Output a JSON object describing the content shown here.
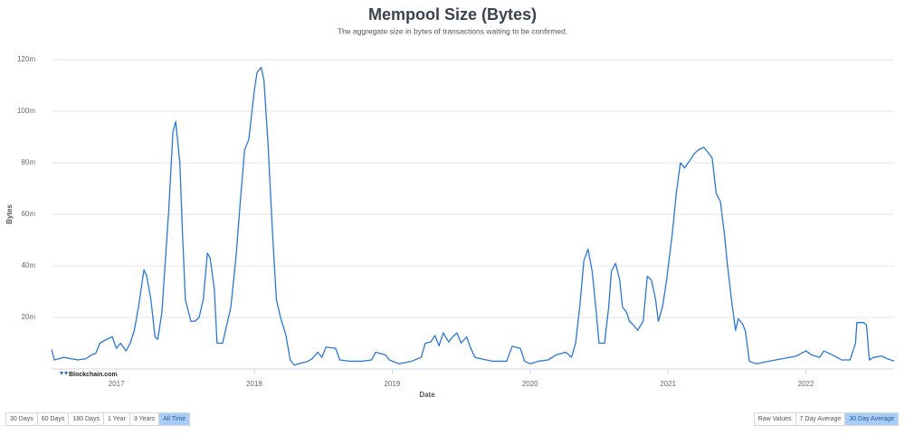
{
  "chart_data": {
    "type": "line",
    "title": "Mempool Size (Bytes)",
    "subtitle": "The aggregate size in bytes of transactions waiting to be confirmed.",
    "x_label": "Date",
    "y_label": "Bytes",
    "watermark": "Blockchain.com",
    "xlim": [
      2016.53,
      2022.64
    ],
    "xticks": [
      2017,
      2018,
      2019,
      2020,
      2021,
      2022
    ],
    "ylim": [
      0,
      120000000
    ],
    "yticks": [
      {
        "value": 20000000,
        "label": "20m"
      },
      {
        "value": 40000000,
        "label": "40m"
      },
      {
        "value": 60000000,
        "label": "60m"
      },
      {
        "value": 80000000,
        "label": "80m"
      },
      {
        "value": 100000000,
        "label": "100m"
      },
      {
        "value": 120000000,
        "label": "120m"
      }
    ],
    "grid": true,
    "series": [
      {
        "color": "#2a78d6",
        "x": [
          2016.53,
          2016.55,
          2016.62,
          2016.72,
          2016.78,
          2016.82,
          2016.85,
          2016.88,
          2016.93,
          2016.97,
          2017.0,
          2017.03,
          2017.07,
          2017.1,
          2017.13,
          2017.16,
          2017.2,
          2017.22,
          2017.25,
          2017.28,
          2017.3,
          2017.33,
          2017.35,
          2017.38,
          2017.41,
          2017.43,
          2017.46,
          2017.48,
          2017.5,
          2017.54,
          2017.57,
          2017.6,
          2017.63,
          2017.66,
          2017.68,
          2017.71,
          2017.73,
          2017.77,
          2017.8,
          2017.83,
          2017.87,
          2017.9,
          2017.93,
          2017.96,
          2018.0,
          2018.02,
          2018.05,
          2018.07,
          2018.1,
          2018.13,
          2018.16,
          2018.19,
          2018.23,
          2018.26,
          2018.29,
          2018.32,
          2018.39,
          2018.42,
          2018.46,
          2018.49,
          2018.52,
          2018.59,
          2018.62,
          2018.69,
          2018.78,
          2018.85,
          2018.88,
          2018.95,
          2018.98,
          2019.05,
          2019.14,
          2019.21,
          2019.24,
          2019.28,
          2019.31,
          2019.34,
          2019.37,
          2019.41,
          2019.44,
          2019.47,
          2019.5,
          2019.54,
          2019.57,
          2019.6,
          2019.64,
          2019.73,
          2019.83,
          2019.87,
          2019.93,
          2019.96,
          2020.0,
          2020.06,
          2020.13,
          2020.19,
          2020.26,
          2020.3,
          2020.33,
          2020.36,
          2020.39,
          2020.42,
          2020.45,
          2020.48,
          2020.5,
          2020.54,
          2020.57,
          2020.59,
          2020.62,
          2020.65,
          2020.67,
          2020.7,
          2020.72,
          2020.75,
          2020.78,
          2020.82,
          2020.85,
          2020.88,
          2020.91,
          2020.93,
          2020.96,
          2020.99,
          2021.03,
          2021.06,
          2021.09,
          2021.12,
          2021.16,
          2021.19,
          2021.22,
          2021.26,
          2021.29,
          2021.32,
          2021.35,
          2021.38,
          2021.41,
          2021.43,
          2021.46,
          2021.49,
          2021.51,
          2021.54,
          2021.56,
          2021.59,
          2021.64,
          2021.73,
          2021.83,
          2021.93,
          2022.0,
          2022.04,
          2022.1,
          2022.13,
          2022.19,
          2022.26,
          2022.32,
          2022.36,
          2022.37,
          2022.42,
          2022.44,
          2022.46,
          2022.49,
          2022.55,
          2022.59,
          2022.64
        ],
        "values": [
          7500000,
          3500000,
          4500000,
          3500000,
          4000000,
          5500000,
          6000000,
          10000000,
          11500000,
          12500000,
          8000000,
          10000000,
          7000000,
          10000000,
          15000000,
          24000000,
          38500000,
          36000000,
          27000000,
          12500000,
          11500000,
          22000000,
          38000000,
          62000000,
          92000000,
          96000000,
          80000000,
          52000000,
          27000000,
          18500000,
          18500000,
          20000000,
          27000000,
          45000000,
          43000000,
          31000000,
          10000000,
          10000000,
          17000000,
          24000000,
          45000000,
          66000000,
          85000000,
          89000000,
          108000000,
          115000000,
          117000000,
          112000000,
          87000000,
          55000000,
          27000000,
          20000000,
          13000000,
          3500000,
          1500000,
          2000000,
          3000000,
          4000000,
          6500000,
          4500000,
          8500000,
          8000000,
          3500000,
          3000000,
          3000000,
          3500000,
          6500000,
          5500000,
          3500000,
          2000000,
          3000000,
          4500000,
          10000000,
          10500000,
          13000000,
          9000000,
          14000000,
          10500000,
          12500000,
          14000000,
          10000000,
          12500000,
          8000000,
          4500000,
          4000000,
          3000000,
          3000000,
          8800000,
          8000000,
          3000000,
          2000000,
          3000000,
          3500000,
          5500000,
          6500000,
          4500000,
          10000000,
          24000000,
          42000000,
          46500000,
          38000000,
          22000000,
          10000000,
          10000000,
          24000000,
          38000000,
          41000000,
          34500000,
          24000000,
          22000000,
          18500000,
          17000000,
          15000000,
          18500000,
          36000000,
          34500000,
          27000000,
          18500000,
          24000000,
          34500000,
          52000000,
          68000000,
          80000000,
          78000000,
          81000000,
          83500000,
          85000000,
          86000000,
          84000000,
          82000000,
          68000000,
          65000000,
          52000000,
          41000000,
          27000000,
          15000000,
          19500000,
          17500000,
          15000000,
          3000000,
          2000000,
          3000000,
          4000000,
          5000000,
          7000000,
          5500000,
          4500000,
          7000000,
          5500000,
          3500000,
          3500000,
          10000000,
          18000000,
          18000000,
          17000000,
          3500000,
          4500000,
          5000000,
          4000000,
          3000000
        ]
      }
    ]
  },
  "range_buttons": {
    "labels": [
      "30 Days",
      "60 Days",
      "180 Days",
      "1 Year",
      "3 Years",
      "All Time"
    ],
    "active": 5
  },
  "mode_buttons": {
    "labels": [
      "Raw Values",
      "7 Day Average",
      "30 Day Average"
    ],
    "active": 2
  }
}
